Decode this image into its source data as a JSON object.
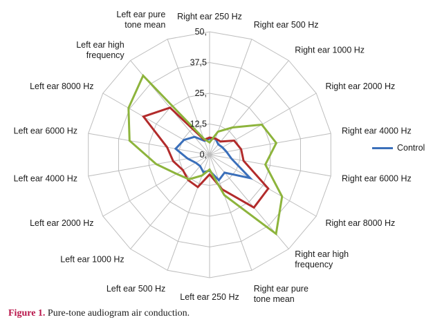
{
  "chart_data": {
    "type": "radar",
    "categories": [
      "Right ear 250 Hz",
      "Right ear 500 Hz",
      "Right ear 1000 Hz",
      "Right ear 2000 Hz",
      "Right ear 4000 Hz",
      "Right ear 6000 Hz",
      "Right ear 8000 Hz",
      "Right ear high frequency",
      "Right ear pure tone mean",
      "Left ear 250 Hz",
      "Left ear 500 Hz",
      "Left ear 1000 Hz",
      "Left ear 2000 Hz",
      "Left ear 4000 Hz",
      "Left ear 6000 Hz",
      "Left ear 8000 Hz",
      "Left ear high frequency",
      "Left ear pure tone mean"
    ],
    "tick_labels": [
      "0,",
      "12,5",
      "25,",
      "37,5",
      "50,"
    ],
    "rlim": [
      0,
      50
    ],
    "ticks": [
      0,
      12.5,
      25,
      37.5,
      50
    ],
    "legend_position": "right",
    "series": [
      {
        "name": "Control",
        "color": "#3a6fba",
        "show_in_legend": true,
        "values": [
          6.5,
          7,
          5.5,
          6,
          7,
          9,
          19,
          9.5,
          11,
          6.5,
          7.5,
          6,
          6.5,
          9,
          14,
          12,
          9.5,
          6
        ]
      },
      {
        "color": "#b22b2b",
        "show_in_legend": false,
        "values": [
          7,
          7,
          7,
          11.5,
          13,
          14,
          27.5,
          28,
          15,
          8,
          14,
          13.5,
          12.5,
          15,
          17.5,
          31,
          25,
          6.5
        ]
      },
      {
        "color": "#8db43c",
        "show_in_legend": false,
        "values": [
          5,
          10,
          14.5,
          24.5,
          27.5,
          23,
          34,
          42,
          17.5,
          6,
          9,
          13,
          15.5,
          22,
          33,
          38,
          42,
          7
        ]
      }
    ]
  },
  "legend": {
    "label": "Control"
  },
  "caption": {
    "figure_label": "Figure 1.",
    "text": " Pure-tone audiogram air conduction."
  }
}
